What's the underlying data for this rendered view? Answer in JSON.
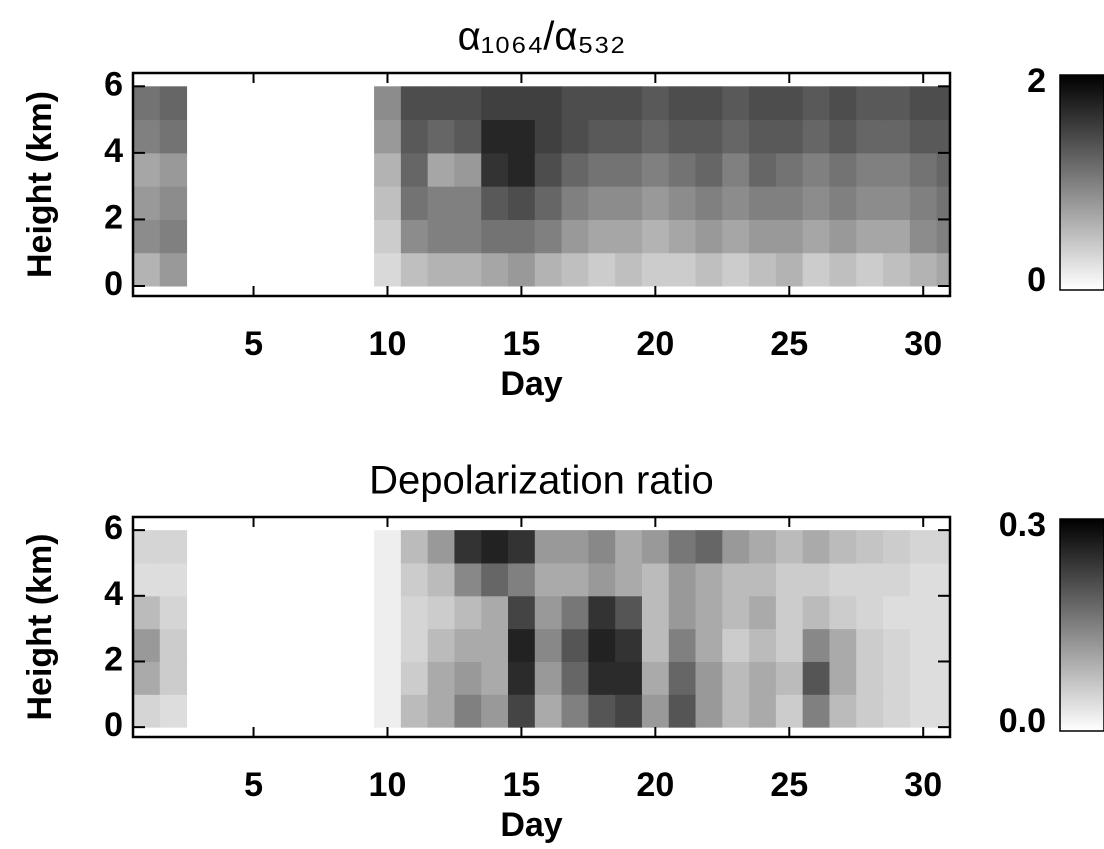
{
  "chart_data": [
    {
      "type": "heatmap",
      "title": "α₁₀₆₄/α₅₃₂",
      "xlabel": "Day",
      "ylabel": "Height (km)",
      "xlim": [
        0.5,
        31
      ],
      "ylim": [
        -0.3,
        6.4
      ],
      "xticks": [
        5,
        10,
        15,
        20,
        25,
        30
      ],
      "yticks": [
        0,
        2,
        4,
        6
      ],
      "xbins": [
        0.5,
        1.5,
        2.5,
        3.5,
        4.5,
        5.5,
        6.5,
        7.5,
        8.5,
        9.5,
        10.5,
        11.5,
        12.5,
        13.5,
        14.5,
        15.5,
        16.5,
        17.5,
        18.5,
        19.5,
        20.5,
        21.5,
        22.5,
        23.5,
        24.5,
        25.5,
        26.5,
        27.5,
        28.5,
        29.5,
        30.5,
        31
      ],
      "ybins": [
        0,
        1,
        2,
        3,
        4,
        5,
        6
      ],
      "z": [
        [
          0.6,
          0.8,
          null,
          null,
          null,
          null,
          null,
          null,
          null,
          0.3,
          0.5,
          0.6,
          0.6,
          0.7,
          0.8,
          0.6,
          0.5,
          0.4,
          0.5,
          0.4,
          0.4,
          0.5,
          0.4,
          0.5,
          0.6,
          0.4,
          0.5,
          0.4,
          0.5,
          0.6,
          0.7
        ],
        [
          0.9,
          1.0,
          null,
          null,
          null,
          null,
          null,
          null,
          null,
          0.4,
          0.9,
          1.0,
          1.0,
          1.1,
          1.1,
          1.0,
          0.8,
          0.7,
          0.7,
          0.6,
          0.7,
          0.8,
          0.7,
          0.8,
          0.8,
          0.7,
          0.8,
          0.7,
          0.7,
          0.9,
          1.0
        ],
        [
          0.8,
          0.9,
          null,
          null,
          null,
          null,
          null,
          null,
          null,
          0.5,
          1.1,
          1.0,
          1.0,
          1.3,
          1.4,
          1.2,
          1.0,
          0.9,
          0.9,
          0.8,
          0.9,
          1.0,
          0.9,
          1.0,
          1.0,
          0.9,
          1.0,
          0.9,
          0.9,
          1.0,
          1.1
        ],
        [
          0.7,
          0.8,
          null,
          null,
          null,
          null,
          null,
          null,
          null,
          0.6,
          1.2,
          0.7,
          0.8,
          1.6,
          1.7,
          1.4,
          1.2,
          1.1,
          1.1,
          1.0,
          1.1,
          1.2,
          1.0,
          1.2,
          1.1,
          1.0,
          1.1,
          1.0,
          1.0,
          1.1,
          1.2
        ],
        [
          1.0,
          1.1,
          null,
          null,
          null,
          null,
          null,
          null,
          null,
          0.8,
          1.3,
          1.2,
          1.3,
          1.7,
          1.7,
          1.5,
          1.4,
          1.3,
          1.3,
          1.2,
          1.3,
          1.3,
          1.2,
          1.3,
          1.3,
          1.2,
          1.3,
          1.2,
          1.2,
          1.3,
          1.3
        ],
        [
          1.1,
          1.2,
          null,
          null,
          null,
          null,
          null,
          null,
          null,
          0.9,
          1.4,
          1.4,
          1.4,
          1.5,
          1.5,
          1.5,
          1.4,
          1.4,
          1.4,
          1.3,
          1.4,
          1.4,
          1.3,
          1.4,
          1.4,
          1.3,
          1.4,
          1.3,
          1.3,
          1.4,
          1.4
        ]
      ],
      "zlim": [
        0,
        2
      ],
      "zticks": [
        0,
        2
      ],
      "colors": [
        "#ffffff",
        "#000000"
      ]
    },
    {
      "type": "heatmap",
      "title": "Depolarization ratio",
      "xlabel": "Day",
      "ylabel": "Height (km)",
      "xlim": [
        0.5,
        31
      ],
      "ylim": [
        -0.3,
        6.4
      ],
      "xticks": [
        5,
        10,
        15,
        20,
        25,
        30
      ],
      "yticks": [
        0,
        2,
        4,
        6
      ],
      "xbins": [
        0.5,
        1.5,
        2.5,
        3.5,
        4.5,
        5.5,
        6.5,
        7.5,
        8.5,
        9.5,
        10.5,
        11.5,
        12.5,
        13.5,
        14.5,
        15.5,
        16.5,
        17.5,
        18.5,
        19.5,
        20.5,
        21.5,
        22.5,
        23.5,
        24.5,
        25.5,
        26.5,
        27.5,
        28.5,
        29.5,
        30.5,
        31
      ],
      "ybins": [
        0,
        1,
        2,
        3,
        4,
        5,
        6
      ],
      "z": [
        [
          0.05,
          0.04,
          null,
          null,
          null,
          null,
          null,
          null,
          null,
          0.02,
          0.08,
          0.1,
          0.15,
          0.12,
          0.22,
          0.1,
          0.15,
          0.2,
          0.22,
          0.12,
          0.2,
          0.12,
          0.08,
          0.1,
          0.06,
          0.15,
          0.08,
          0.06,
          0.05,
          0.04,
          0.04
        ],
        [
          0.1,
          0.06,
          null,
          null,
          null,
          null,
          null,
          null,
          null,
          0.02,
          0.06,
          0.1,
          0.12,
          0.1,
          0.25,
          0.12,
          0.18,
          0.25,
          0.25,
          0.1,
          0.18,
          0.12,
          0.08,
          0.1,
          0.08,
          0.2,
          0.1,
          0.06,
          0.05,
          0.04,
          0.04
        ],
        [
          0.12,
          0.06,
          null,
          null,
          null,
          null,
          null,
          null,
          null,
          0.02,
          0.05,
          0.08,
          0.1,
          0.1,
          0.26,
          0.14,
          0.2,
          0.26,
          0.24,
          0.08,
          0.15,
          0.1,
          0.06,
          0.08,
          0.06,
          0.14,
          0.1,
          0.06,
          0.05,
          0.04,
          0.04
        ],
        [
          0.08,
          0.05,
          null,
          null,
          null,
          null,
          null,
          null,
          null,
          0.02,
          0.05,
          0.06,
          0.08,
          0.1,
          0.22,
          0.12,
          0.16,
          0.24,
          0.2,
          0.08,
          0.12,
          0.1,
          0.08,
          0.1,
          0.06,
          0.08,
          0.06,
          0.05,
          0.04,
          0.04,
          0.04
        ],
        [
          0.04,
          0.04,
          null,
          null,
          null,
          null,
          null,
          null,
          null,
          0.02,
          0.06,
          0.08,
          0.14,
          0.18,
          0.15,
          0.1,
          0.1,
          0.12,
          0.1,
          0.08,
          0.12,
          0.1,
          0.08,
          0.08,
          0.06,
          0.06,
          0.05,
          0.05,
          0.05,
          0.04,
          0.04
        ],
        [
          0.05,
          0.05,
          null,
          null,
          null,
          null,
          null,
          null,
          null,
          0.02,
          0.08,
          0.12,
          0.24,
          0.26,
          0.24,
          0.12,
          0.12,
          0.14,
          0.1,
          0.12,
          0.16,
          0.18,
          0.12,
          0.1,
          0.08,
          0.1,
          0.08,
          0.07,
          0.06,
          0.05,
          0.05
        ]
      ],
      "zlim": [
        0,
        0.3
      ],
      "zticks": [
        {
          "value": 0,
          "label": "0.0"
        },
        {
          "value": 0.3,
          "label": "0.3"
        }
      ],
      "colors": [
        "#ffffff",
        "#000000"
      ]
    }
  ]
}
